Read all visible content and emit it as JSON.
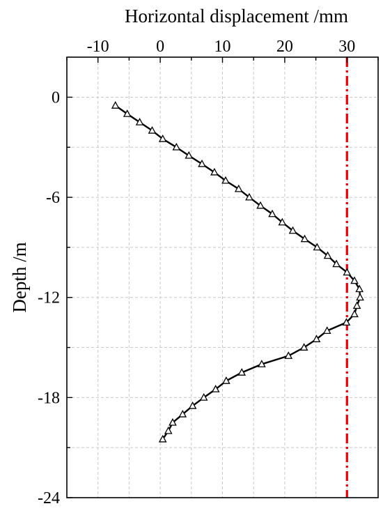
{
  "chart_data": {
    "type": "line",
    "xlabel": "Horizontal displacement /mm",
    "ylabel": "Depth  /m",
    "xlim": [
      -15,
      35
    ],
    "ylim": [
      -24,
      2.4
    ],
    "x_axis_position": "top",
    "grid": true,
    "xticks": [
      -10,
      0,
      10,
      20,
      30
    ],
    "yticks": [
      0,
      -6,
      -12,
      -18,
      -24
    ],
    "tick_labels_x": [
      "-10",
      "0",
      "10",
      "20",
      "30"
    ],
    "tick_labels_y": [
      "0",
      "-6",
      "-12",
      "-18",
      "-24"
    ],
    "series": [
      {
        "color": "#000000",
        "marker": "open-triangle",
        "x": [
          -7.2,
          -5.3,
          -3.3,
          -1.3,
          0.4,
          2.6,
          4.6,
          6.7,
          8.7,
          10.5,
          12.6,
          14.3,
          16.1,
          18.0,
          19.6,
          21.3,
          23.2,
          25.2,
          26.9,
          28.3,
          30.0,
          31.2,
          32.0,
          32.1,
          31.6,
          31.2,
          29.9,
          26.8,
          25.1,
          23.1,
          20.6,
          16.3,
          13.1,
          10.6,
          8.9,
          7.0,
          5.2,
          3.6,
          2.0,
          1.3,
          0.4
        ],
        "y": [
          -0.5,
          -1.0,
          -1.5,
          -2.0,
          -2.5,
          -3.0,
          -3.5,
          -4.0,
          -4.5,
          -5.0,
          -5.5,
          -6.0,
          -6.5,
          -7.0,
          -7.5,
          -8.0,
          -8.5,
          -9.0,
          -9.5,
          -10.0,
          -10.5,
          -11.0,
          -11.5,
          -12.0,
          -12.5,
          -13.0,
          -13.5,
          -14.0,
          -14.5,
          -15.0,
          -15.5,
          -16.0,
          -16.5,
          -17.0,
          -17.5,
          -18.0,
          -18.5,
          -19.0,
          -19.5,
          -20.0,
          -20.5
        ]
      }
    ],
    "reference_lines": [
      {
        "orientation": "vertical",
        "x": 30,
        "color": "#e8000b",
        "style": "dash-dot"
      }
    ]
  }
}
